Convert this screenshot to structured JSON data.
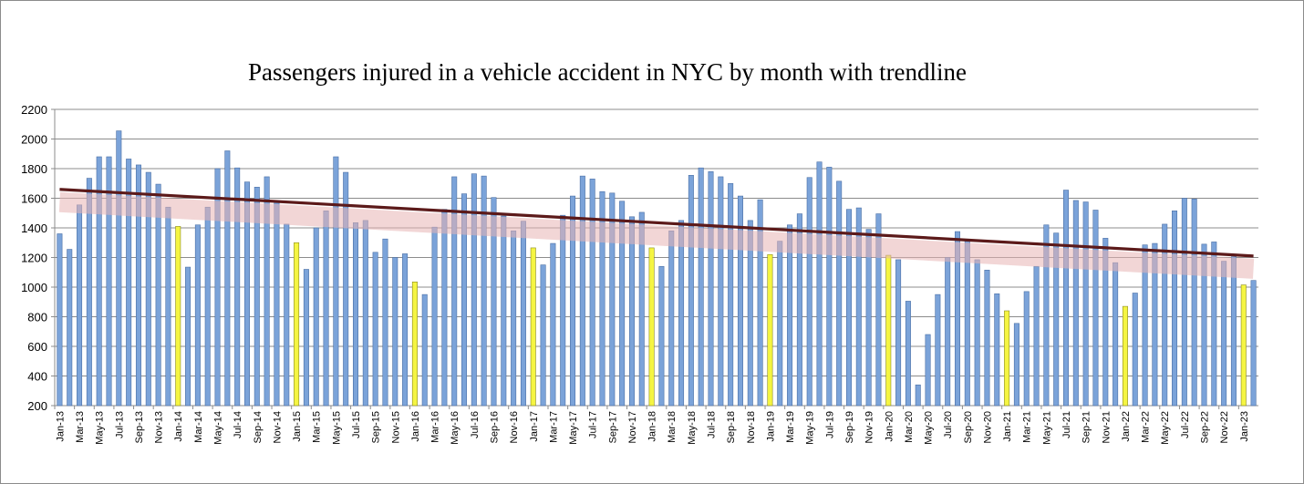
{
  "chart_data": {
    "type": "bar",
    "title": "Passengers injured in a vehicle accident in NYC by month with trendline",
    "xlabel": "",
    "ylabel": "",
    "ylim": [
      200,
      2200
    ],
    "yticks": [
      200,
      400,
      600,
      800,
      1000,
      1200,
      1400,
      1600,
      1800,
      2000,
      2200
    ],
    "grid": true,
    "legend": "none",
    "colors": {
      "bar": "#7ba3d9",
      "january_bar": "#f5f542",
      "bar_edge": "#4a6fa5",
      "trendline": "#5c1a1a",
      "trend_band": "#e8b4b4",
      "grid": "#8c8c8c"
    },
    "tick_labels": [
      "Jan-13",
      "Mar-13",
      "May-13",
      "Jul-13",
      "Sep-13",
      "Nov-13",
      "Jan-14",
      "Mar-14",
      "May-14",
      "Jul-14",
      "Sep-14",
      "Nov-14",
      "Jan-15",
      "Mar-15",
      "May-15",
      "Jul-15",
      "Sep-15",
      "Nov-15",
      "Jan-16",
      "Mar-16",
      "May-16",
      "Jul-16",
      "Sep-16",
      "Nov-16",
      "Jan-17",
      "Mar-17",
      "May-17",
      "Jul-17",
      "Sep-17",
      "Nov-17",
      "Jan-18",
      "Mar-18",
      "May-18",
      "Jul-18",
      "Sep-18",
      "Nov-18",
      "Jan-19",
      "Mar-19",
      "May-19",
      "Jul-19",
      "Sep-19",
      "Nov-19",
      "Jan-20",
      "Mar-20",
      "May-20",
      "Jul-20",
      "Sep-20",
      "Nov-20",
      "Jan-21",
      "Mar-21",
      "May-21",
      "Jul-21",
      "Sep-21",
      "Nov-21",
      "Jan-22",
      "Mar-22",
      "May-22",
      "Jul-22",
      "Sep-22",
      "Nov-22",
      "Jan-23"
    ],
    "series": [
      {
        "values": [
          1360,
          1255,
          1555,
          1735,
          1880,
          1880,
          2055,
          1865,
          1825,
          1775,
          1695,
          1540,
          1410,
          1135,
          1420,
          1540,
          1800,
          1920,
          1805,
          1710,
          1675,
          1745,
          1580,
          1425,
          1300,
          1120,
          1400,
          1515,
          1880,
          1775,
          1435,
          1450,
          1235,
          1325,
          1200,
          1225,
          1035,
          950,
          1405,
          1525,
          1745,
          1630,
          1765,
          1750,
          1605,
          1480,
          1380,
          1445,
          1265,
          1150,
          1295,
          1485,
          1615,
          1750,
          1730,
          1645,
          1635,
          1580,
          1475,
          1505,
          1265,
          1140,
          1380,
          1450,
          1755,
          1805,
          1780,
          1745,
          1700,
          1615,
          1450,
          1590,
          1220,
          1310,
          1420,
          1495,
          1740,
          1845,
          1810,
          1715,
          1525,
          1535,
          1390,
          1495,
          1215,
          1185,
          905,
          340,
          680,
          950,
          1200,
          1375,
          1310,
          1185,
          1115,
          955,
          840,
          755,
          970,
          1140,
          1420,
          1365,
          1655,
          1585,
          1575,
          1520,
          1330,
          1165,
          870,
          960,
          1285,
          1295,
          1425,
          1515,
          1600,
          1595,
          1290,
          1305,
          1175,
          1205,
          1015,
          1045
        ]
      }
    ],
    "trendline": {
      "start": 1660,
      "end": 1210
    }
  }
}
